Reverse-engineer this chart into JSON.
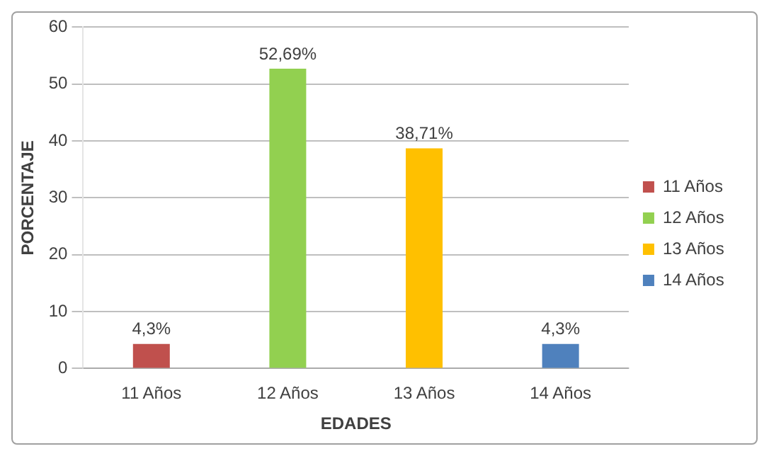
{
  "chart_data": {
    "type": "bar",
    "xlabel": "EDADES",
    "ylabel": "PORCENTAJE",
    "categories": [
      "11 Años",
      "12 Años",
      "13 Años",
      "14 Años"
    ],
    "series": [
      {
        "name": "11 Años",
        "color": "#c0504d",
        "values": [
          4.3,
          null,
          null,
          null
        ],
        "value_labels": [
          "4,3%",
          null,
          null,
          null
        ]
      },
      {
        "name": "12 Años",
        "color": "#92d050",
        "values": [
          null,
          52.69,
          null,
          null
        ],
        "value_labels": [
          null,
          "52,69%",
          null,
          null
        ]
      },
      {
        "name": "13 Años",
        "color": "#ffc000",
        "values": [
          null,
          null,
          38.71,
          null
        ],
        "value_labels": [
          null,
          null,
          "38,71%",
          null
        ]
      },
      {
        "name": "14 Años",
        "color": "#4f81bd",
        "values": [
          null,
          null,
          null,
          4.3
        ],
        "value_labels": [
          null,
          null,
          null,
          "4,3%"
        ]
      }
    ],
    "ylim": [
      0,
      60
    ],
    "yticks": [
      0,
      10,
      20,
      30,
      40,
      50,
      60
    ],
    "grid": "y",
    "legend": "right"
  }
}
